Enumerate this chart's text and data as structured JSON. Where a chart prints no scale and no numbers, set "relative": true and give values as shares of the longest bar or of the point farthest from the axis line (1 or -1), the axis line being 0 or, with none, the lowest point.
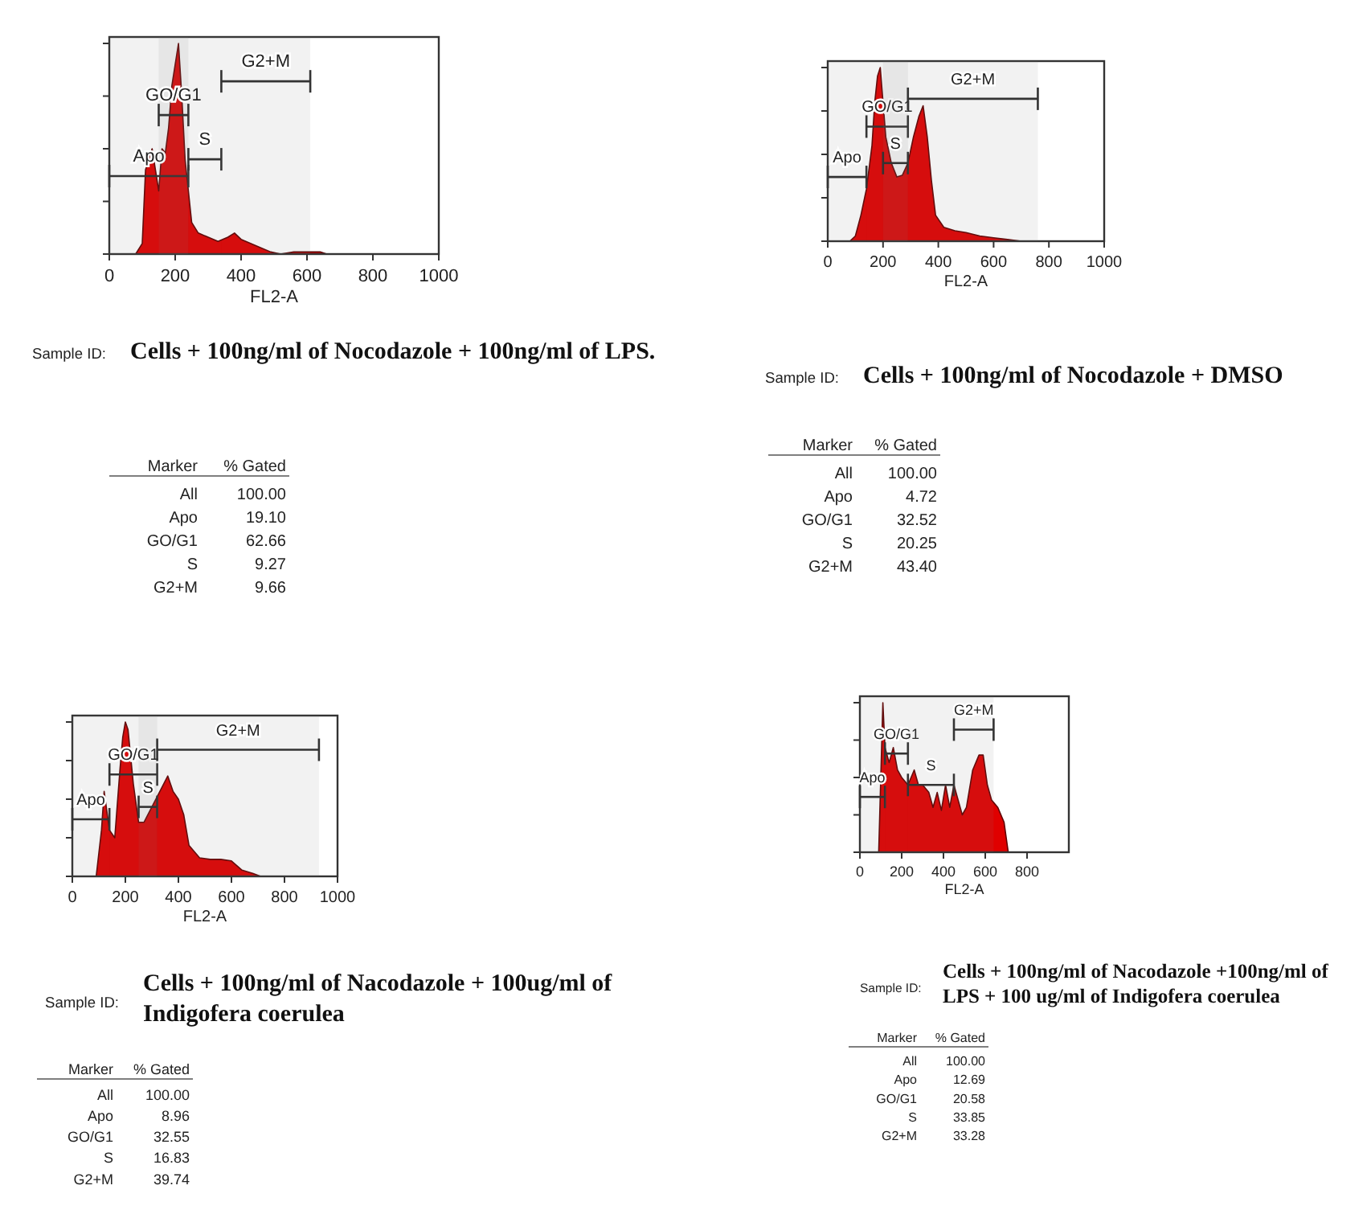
{
  "chart_data": [
    {
      "type": "area",
      "relative": true,
      "xlabel": "FL2-A",
      "xlim": [
        0,
        1000
      ],
      "xticks": [
        0,
        200,
        400,
        600,
        800,
        1000
      ],
      "tick_labels": "x",
      "series": [
        {
          "color": "#e00000",
          "x": [
            80,
            100,
            110,
            120,
            130,
            140,
            150,
            160,
            170,
            180,
            190,
            200,
            210,
            220,
            230,
            240,
            250,
            270,
            300,
            330,
            360,
            380,
            400,
            430,
            460,
            490,
            520,
            560,
            600,
            640,
            660
          ],
          "values": [
            0,
            0.05,
            0.4,
            0.45,
            0.5,
            0.4,
            0.3,
            0.5,
            0.48,
            0.6,
            0.8,
            0.9,
            1,
            0.75,
            0.45,
            0.3,
            0.15,
            0.1,
            0.08,
            0.06,
            0.08,
            0.1,
            0.07,
            0.05,
            0.03,
            0.01,
            0,
            0.01,
            0.01,
            0.01,
            0
          ]
        }
      ],
      "bands": [
        {
          "axis": "x",
          "from": 0,
          "to": 240,
          "label": "Apo"
        },
        {
          "axis": "x",
          "from": 150,
          "to": 240,
          "label": "GO/G1"
        },
        {
          "axis": "x",
          "from": 240,
          "to": 340,
          "label": "S"
        },
        {
          "axis": "x",
          "from": 340,
          "to": 610,
          "label": "G2+M"
        }
      ]
    },
    {
      "type": "other",
      "subtitle": "Sample ID:",
      "title": "Cells + 100ng/ml of Nocodazole + 100ng/ml of LPS.",
      "xlabel": "Marker",
      "ylabel": "% Gated",
      "categories": [
        "All",
        "Apo",
        "GO/G1",
        "S",
        "G2+M"
      ],
      "value_labels": [
        "100.00",
        "19.10",
        "62.66",
        "9.27",
        "9.66"
      ]
    },
    {
      "type": "area",
      "relative": true,
      "xlabel": "FL2-A",
      "xlim": [
        0,
        1000
      ],
      "xticks": [
        0,
        200,
        400,
        600,
        800,
        1000
      ],
      "tick_labels": "x",
      "series": [
        {
          "color": "#e00000",
          "x": [
            80,
            100,
            120,
            140,
            160,
            170,
            180,
            190,
            200,
            210,
            230,
            250,
            270,
            290,
            310,
            330,
            345,
            360,
            375,
            390,
            420,
            460,
            500,
            550,
            600,
            650,
            700
          ],
          "values": [
            0,
            0.03,
            0.15,
            0.3,
            0.55,
            0.8,
            0.95,
            1,
            0.8,
            0.6,
            0.45,
            0.37,
            0.38,
            0.45,
            0.6,
            0.72,
            0.78,
            0.6,
            0.35,
            0.15,
            0.08,
            0.06,
            0.05,
            0.03,
            0.02,
            0.01,
            0
          ]
        }
      ],
      "bands": [
        {
          "axis": "x",
          "from": 0,
          "to": 140,
          "label": "Apo"
        },
        {
          "axis": "x",
          "from": 140,
          "to": 290,
          "label": "GO/G1"
        },
        {
          "axis": "x",
          "from": 200,
          "to": 290,
          "label": "S"
        },
        {
          "axis": "x",
          "from": 290,
          "to": 760,
          "label": "G2+M"
        }
      ]
    },
    {
      "type": "other",
      "subtitle": "Sample ID:",
      "title": "Cells + 100ng/ml of Nocodazole + DMSO",
      "xlabel": "Marker",
      "ylabel": "% Gated",
      "categories": [
        "All",
        "Apo",
        "GO/G1",
        "S",
        "G2+M"
      ],
      "value_labels": [
        "100.00",
        "4.72",
        "32.52",
        "20.25",
        "43.40"
      ]
    },
    {
      "type": "area",
      "relative": true,
      "xlabel": "FL2-A",
      "xlim": [
        0,
        1000
      ],
      "xticks": [
        0,
        200,
        400,
        600,
        800,
        1000
      ],
      "tick_labels": "x",
      "series": [
        {
          "color": "#e00000",
          "x": [
            90,
            110,
            120,
            140,
            160,
            180,
            190,
            200,
            210,
            230,
            250,
            270,
            300,
            330,
            360,
            380,
            400,
            420,
            440,
            480,
            520,
            560,
            600,
            640,
            680,
            710
          ],
          "values": [
            0,
            0.3,
            0.55,
            0.3,
            0.25,
            0.7,
            0.9,
            1,
            0.95,
            0.6,
            0.35,
            0.35,
            0.45,
            0.55,
            0.65,
            0.55,
            0.5,
            0.4,
            0.2,
            0.12,
            0.11,
            0.11,
            0.1,
            0.04,
            0.02,
            0
          ]
        }
      ],
      "bands": [
        {
          "axis": "x",
          "from": 0,
          "to": 140,
          "label": "Apo"
        },
        {
          "axis": "x",
          "from": 140,
          "to": 320,
          "label": "GO/G1"
        },
        {
          "axis": "x",
          "from": 250,
          "to": 320,
          "label": "S"
        },
        {
          "axis": "x",
          "from": 320,
          "to": 930,
          "label": "G2+M"
        }
      ]
    },
    {
      "type": "other",
      "subtitle": "Sample ID:",
      "title": "Cells + 100ng/ml of Nacodazole + 100ug/ml of Indigofera coerulea",
      "xlabel": "Marker",
      "ylabel": "% Gated",
      "categories": [
        "All",
        "Apo",
        "GO/G1",
        "S",
        "G2+M"
      ],
      "value_labels": [
        "100.00",
        "8.96",
        "32.55",
        "16.83",
        "39.74"
      ]
    },
    {
      "type": "area",
      "relative": true,
      "xlabel": "FL2-A",
      "xlim": [
        0,
        1000
      ],
      "xticks": [
        0,
        200,
        400,
        600,
        800
      ],
      "tick_labels": "x",
      "series": [
        {
          "color": "#e00000",
          "x": [
            90,
            110,
            120,
            140,
            160,
            180,
            200,
            230,
            260,
            280,
            300,
            330,
            350,
            370,
            390,
            410,
            430,
            450,
            470,
            490,
            510,
            540,
            570,
            590,
            610,
            630,
            660,
            690,
            710
          ],
          "values": [
            0,
            1,
            0.7,
            0.6,
            0.7,
            0.55,
            0.5,
            0.45,
            0.55,
            0.45,
            0.45,
            0.4,
            0.3,
            0.4,
            0.28,
            0.45,
            0.3,
            0.45,
            0.35,
            0.25,
            0.3,
            0.55,
            0.65,
            0.65,
            0.45,
            0.35,
            0.3,
            0.2,
            0
          ]
        }
      ],
      "bands": [
        {
          "axis": "x",
          "from": 0,
          "to": 120,
          "label": "Apo"
        },
        {
          "axis": "x",
          "from": 120,
          "to": 230,
          "label": "GO/G1"
        },
        {
          "axis": "x",
          "from": 230,
          "to": 450,
          "label": "S"
        },
        {
          "axis": "x",
          "from": 450,
          "to": 640,
          "label": "G2+M"
        }
      ]
    },
    {
      "type": "other",
      "subtitle": "Sample ID:",
      "title": "Cells + 100ng/ml of Nacodazole +100ng/ml of LPS + 100 ug/ml of Indigofera coerulea",
      "xlabel": "Marker",
      "ylabel": "% Gated",
      "categories": [
        "All",
        "Apo",
        "GO/G1",
        "S",
        "G2+M"
      ],
      "value_labels": [
        "100.00",
        "12.69",
        "20.58",
        "33.85",
        "33.28"
      ]
    }
  ]
}
